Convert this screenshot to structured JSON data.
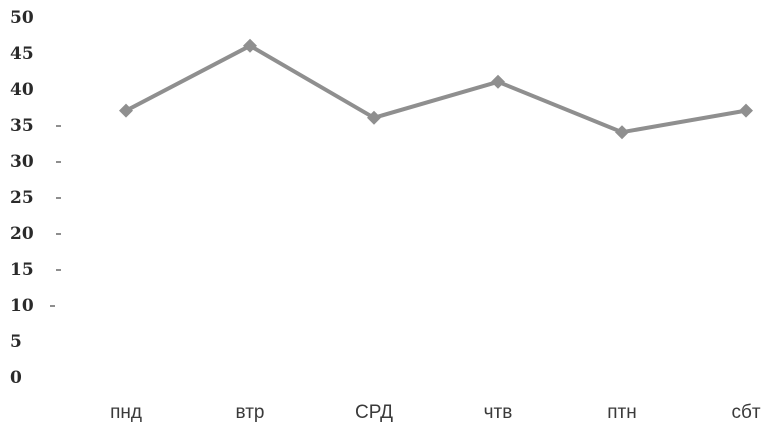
{
  "chart_data": {
    "type": "line",
    "categories": [
      "пнд",
      "втр",
      "СРД",
      "чтв",
      "птн",
      "сбт"
    ],
    "series": [
      {
        "values": [
          37,
          46,
          36,
          41,
          34,
          37
        ]
      }
    ],
    "ylim": [
      0,
      50
    ],
    "yticks": [
      "0",
      "5",
      "10",
      "15",
      "20",
      "25",
      "30",
      "35",
      "40",
      "45",
      "50"
    ],
    "grid": false,
    "legend": "none",
    "colors": {
      "line": "#8f8f8f",
      "text": "#2a2a2a"
    }
  }
}
